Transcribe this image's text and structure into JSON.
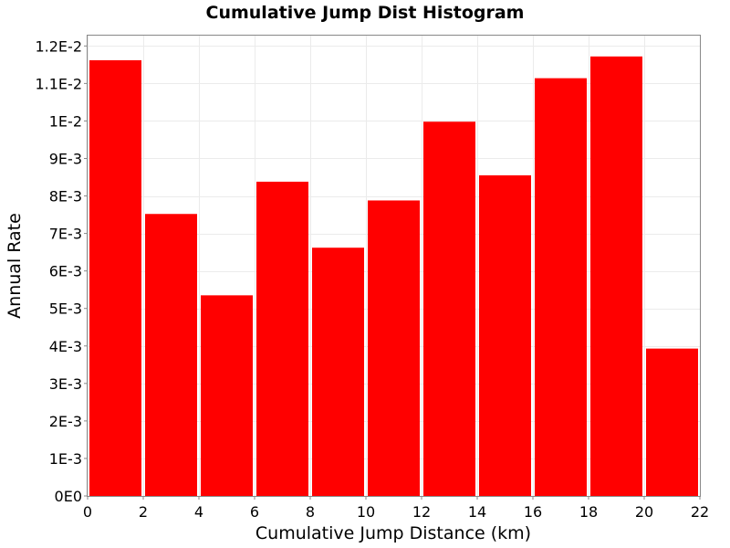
{
  "chart_data": {
    "type": "bar",
    "title": "Cumulative Jump Dist Histogram",
    "xlabel": "Cumulative Jump Distance (km)",
    "ylabel": "Annual Rate",
    "xlim": [
      0,
      22
    ],
    "ylim": [
      0,
      0.0123
    ],
    "xticks": [
      {
        "value": 0,
        "label": "0"
      },
      {
        "value": 2,
        "label": "2"
      },
      {
        "value": 4,
        "label": "4"
      },
      {
        "value": 6,
        "label": "6"
      },
      {
        "value": 8,
        "label": "8"
      },
      {
        "value": 10,
        "label": "10"
      },
      {
        "value": 12,
        "label": "12"
      },
      {
        "value": 14,
        "label": "14"
      },
      {
        "value": 16,
        "label": "16"
      },
      {
        "value": 18,
        "label": "18"
      },
      {
        "value": 20,
        "label": "20"
      },
      {
        "value": 22,
        "label": "22"
      }
    ],
    "yticks": [
      {
        "value": 0,
        "label": "0E0"
      },
      {
        "value": 0.001,
        "label": "1E-3"
      },
      {
        "value": 0.002,
        "label": "2E-3"
      },
      {
        "value": 0.003,
        "label": "3E-3"
      },
      {
        "value": 0.004,
        "label": "4E-3"
      },
      {
        "value": 0.005,
        "label": "5E-3"
      },
      {
        "value": 0.006,
        "label": "6E-3"
      },
      {
        "value": 0.007,
        "label": "7E-3"
      },
      {
        "value": 0.008,
        "label": "8E-3"
      },
      {
        "value": 0.009,
        "label": "9E-3"
      },
      {
        "value": 0.01,
        "label": "1E-2"
      },
      {
        "value": 0.011,
        "label": "1.1E-2"
      },
      {
        "value": 0.012,
        "label": "1.2E-2"
      }
    ],
    "bin_width": 2,
    "bars": [
      {
        "x": 1,
        "value": 0.01162
      },
      {
        "x": 3,
        "value": 0.00752
      },
      {
        "x": 5,
        "value": 0.00535
      },
      {
        "x": 7,
        "value": 0.00838
      },
      {
        "x": 9,
        "value": 0.00662
      },
      {
        "x": 11,
        "value": 0.00788
      },
      {
        "x": 13,
        "value": 0.00998
      },
      {
        "x": 15,
        "value": 0.00855
      },
      {
        "x": 17,
        "value": 0.01114
      },
      {
        "x": 19,
        "value": 0.01172
      },
      {
        "x": 21,
        "value": 0.00393
      }
    ],
    "bar_color": "#ff0000",
    "grid": true,
    "grid_color": "#ebebeb",
    "legend": "none"
  }
}
